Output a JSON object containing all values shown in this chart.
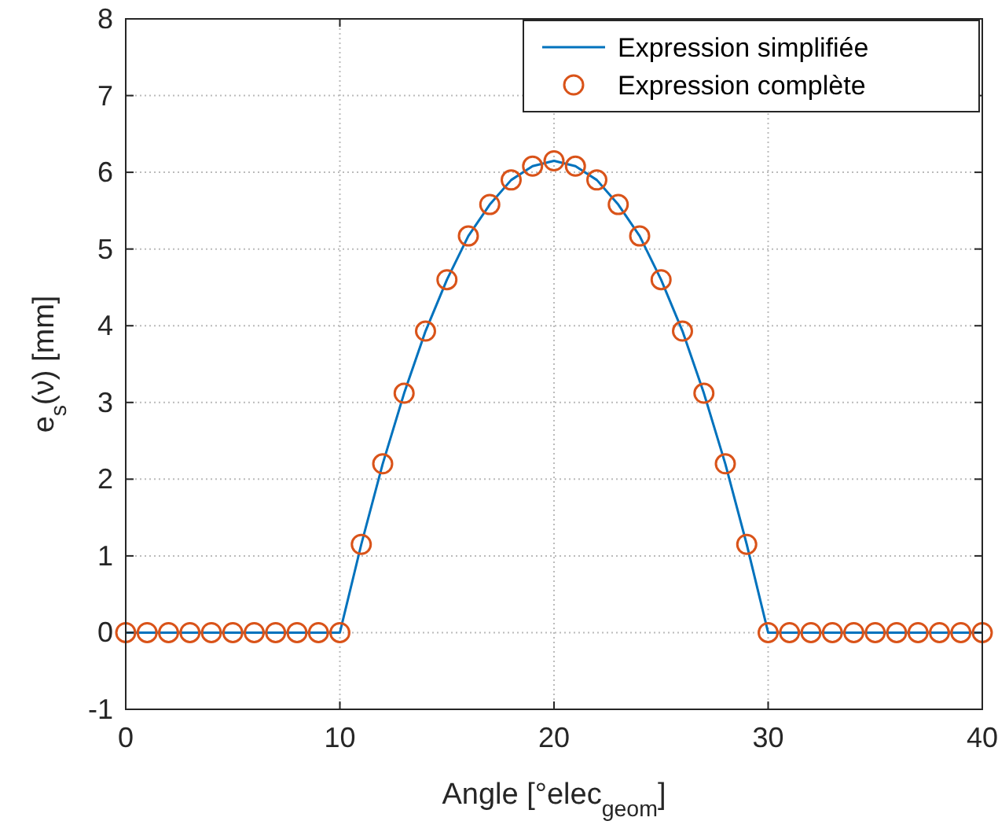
{
  "chart_data": {
    "type": "line",
    "xlabel": "Angle [°elec$_{geom}$]",
    "ylabel": "e$_{s}$(ν) [mm]",
    "xlim": [
      0,
      40
    ],
    "ylim": [
      -1,
      8
    ],
    "xticks": [
      0,
      10,
      20,
      30,
      40
    ],
    "yticks": [
      -1,
      0,
      1,
      2,
      3,
      4,
      5,
      6,
      7,
      8
    ],
    "grid": true,
    "legend": "top right",
    "series": [
      {
        "name": "Expression simplifiée",
        "color": "#0072bd",
        "marker": "none",
        "line_style": "solid",
        "x": [
          0,
          10,
          11,
          12,
          13,
          14,
          15,
          16,
          17,
          18,
          19,
          20,
          21,
          22,
          23,
          24,
          25,
          26,
          27,
          28,
          29,
          30,
          40
        ],
        "values": [
          0,
          0,
          1.15,
          2.2,
          3.12,
          3.93,
          4.6,
          5.17,
          5.58,
          5.9,
          6.08,
          6.15,
          6.08,
          5.9,
          5.58,
          5.17,
          4.6,
          3.93,
          3.12,
          2.2,
          1.15,
          0,
          0
        ]
      },
      {
        "name": "Expression complète",
        "type": "scatter",
        "color": "#d95319",
        "marker": "circle",
        "x": [
          0,
          1,
          2,
          3,
          4,
          5,
          6,
          7,
          8,
          9,
          10,
          11,
          12,
          13,
          14,
          15,
          16,
          17,
          18,
          19,
          20,
          21,
          22,
          23,
          24,
          25,
          26,
          27,
          28,
          29,
          30,
          31,
          32,
          33,
          34,
          35,
          36,
          37,
          38,
          39,
          40
        ],
        "values": [
          0,
          0,
          0,
          0,
          0,
          0,
          0,
          0,
          0,
          0,
          0,
          1.15,
          2.2,
          3.12,
          3.93,
          4.6,
          5.17,
          5.58,
          5.9,
          6.08,
          6.15,
          6.08,
          5.9,
          5.58,
          5.17,
          4.6,
          3.93,
          3.12,
          2.2,
          1.15,
          0,
          0,
          0,
          0,
          0,
          0,
          0,
          0,
          0,
          0,
          0
        ]
      }
    ]
  }
}
